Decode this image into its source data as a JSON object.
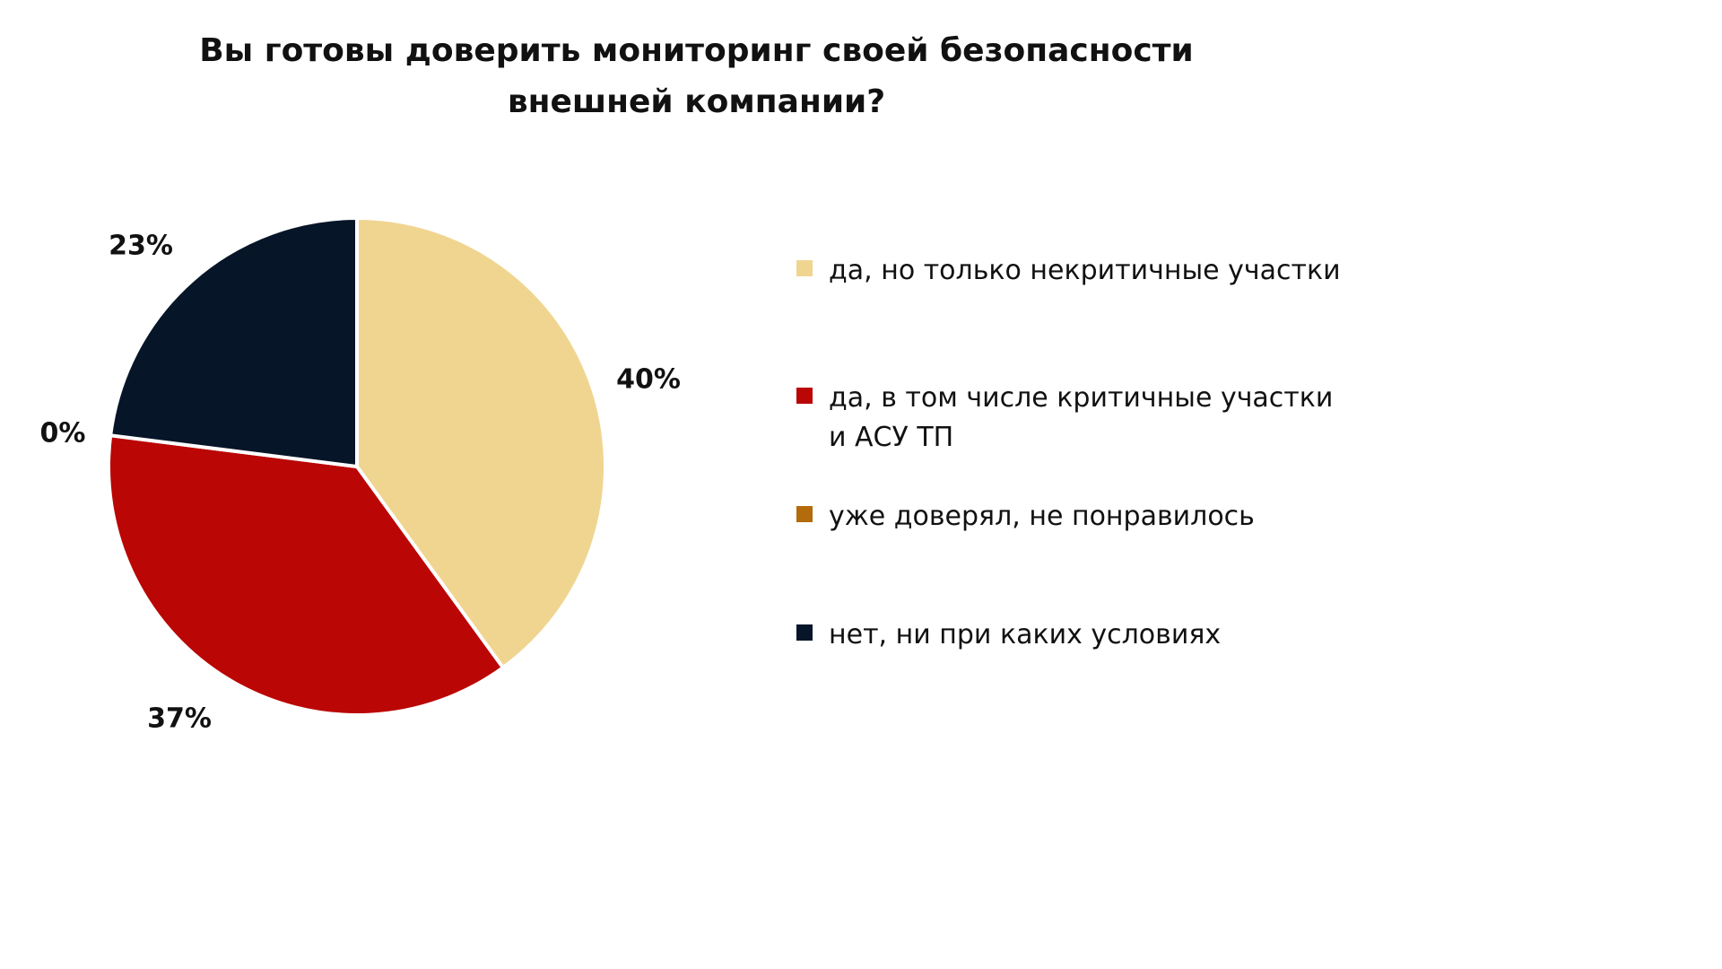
{
  "chart_data": {
    "type": "pie",
    "title": "Вы готовы доверить мониторинг своей безопасности внешней компании?",
    "title_lines": [
      "Вы готовы доверить мониторинг своей безопасности",
      "внешней компании?"
    ],
    "legend_position": "right",
    "slices": [
      {
        "name": "да, но только некритичные участки",
        "value": 40,
        "label": "40%",
        "color": "#F0D591"
      },
      {
        "name": "да, в том числе критичные участки и АСУ ТП",
        "value": 37,
        "label": "37%",
        "color": "#BA0604"
      },
      {
        "name": "уже доверял, не понравилось",
        "value": 0,
        "label": "0%",
        "color": "#B36B0C"
      },
      {
        "name": "нет, ни при каких условиях",
        "value": 23,
        "label": "23%",
        "color": "#061528"
      }
    ],
    "legend": [
      {
        "lines": [
          "да, но только некритичные участки"
        ],
        "color": "#F0D591"
      },
      {
        "lines": [
          "да, в том числе критичные участки",
          "и АСУ ТП"
        ],
        "color": "#BA0604"
      },
      {
        "lines": [
          "уже доверял, не понравилось"
        ],
        "color": "#B36B0C"
      },
      {
        "lines": [
          "нет, ни при каких условиях"
        ],
        "color": "#061528"
      }
    ]
  }
}
